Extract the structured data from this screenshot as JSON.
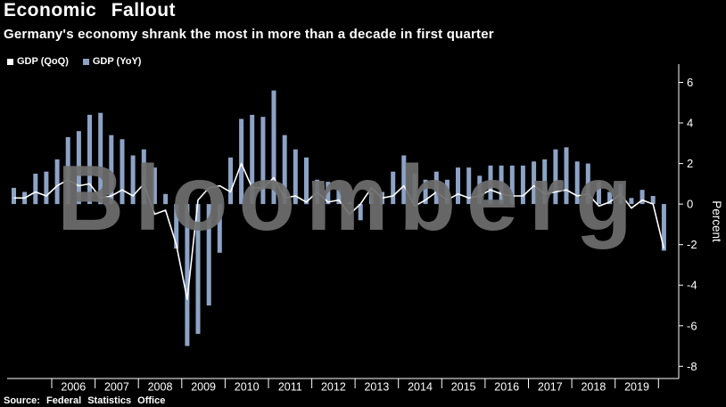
{
  "header": {
    "title": "Economic Fallout",
    "subtitle": "Germany's economy shrank the most in more than a decade in first quarter"
  },
  "legend": [
    {
      "label": "GDP (QoQ)",
      "color": "#ffffff"
    },
    {
      "label": "GDP (YoY)",
      "color": "#8da3c6"
    }
  ],
  "watermark": "Bloomberg",
  "source": "Source: Federal Statistics Office",
  "colors": {
    "background": "#000000",
    "axis": "#ffffff",
    "bar": "#8da3c6",
    "line": "#ffffff",
    "watermark": "#6e6e6e"
  },
  "chart_data": {
    "type": "bar+line",
    "title": "Economic Fallout",
    "subtitle": "Germany's economy shrank the most in more than a decade in first quarter",
    "xlabel": "",
    "ylabel": "Percent",
    "ylim": [
      -8.6,
      6.9
    ],
    "yticks": [
      6,
      4,
      2,
      0,
      -2,
      -4,
      -6,
      -8
    ],
    "x_start": "2005 Q1",
    "x_end": "2020 Q1",
    "frequency": "quarterly",
    "year_labels": [
      "2006",
      "2007",
      "2008",
      "2009",
      "2010",
      "2011",
      "2012",
      "2013",
      "2014",
      "2015",
      "2016",
      "2017",
      "2018",
      "2019"
    ],
    "legend_position": "top-left",
    "grid": false,
    "series": [
      {
        "name": "GDP (QoQ)",
        "type": "line",
        "color": "#ffffff",
        "values": [
          0.3,
          0.3,
          0.6,
          0.4,
          0.9,
          1.2,
          0.9,
          1.0,
          0.3,
          0.4,
          0.7,
          0.4,
          1.0,
          -0.5,
          -0.3,
          -2.0,
          -4.7,
          0.2,
          0.8,
          0.9,
          0.6,
          2.0,
          0.8,
          0.8,
          1.3,
          0.3,
          0.4,
          0.1,
          0.6,
          0.1,
          0.2,
          -0.5,
          0.0,
          0.8,
          0.3,
          0.4,
          0.9,
          -0.1,
          0.2,
          0.6,
          0.2,
          0.5,
          0.3,
          0.4,
          0.7,
          0.5,
          0.4,
          0.4,
          0.9,
          0.5,
          0.6,
          0.7,
          0.4,
          0.5,
          -0.1,
          0.1,
          0.5,
          -0.2,
          0.2,
          0.0,
          -2.2
        ]
      },
      {
        "name": "GDP (YoY)",
        "type": "bar",
        "color": "#8da3c6",
        "values": [
          0.8,
          0.6,
          1.5,
          1.6,
          2.2,
          3.3,
          3.6,
          4.4,
          4.5,
          3.4,
          3.2,
          2.4,
          2.7,
          1.8,
          0.5,
          -2.2,
          -7.0,
          -6.4,
          -5.0,
          -2.4,
          2.3,
          4.2,
          4.4,
          4.3,
          5.6,
          3.4,
          2.7,
          2.3,
          1.2,
          1.1,
          0.7,
          0.1,
          -0.8,
          0.6,
          0.6,
          1.6,
          2.4,
          1.5,
          1.2,
          1.6,
          1.2,
          1.8,
          1.8,
          1.4,
          1.9,
          1.9,
          1.9,
          1.9,
          2.1,
          2.2,
          2.7,
          2.8,
          2.1,
          2.0,
          1.1,
          0.6,
          1.0,
          0.3,
          0.7,
          0.4,
          -2.3
        ]
      }
    ]
  }
}
